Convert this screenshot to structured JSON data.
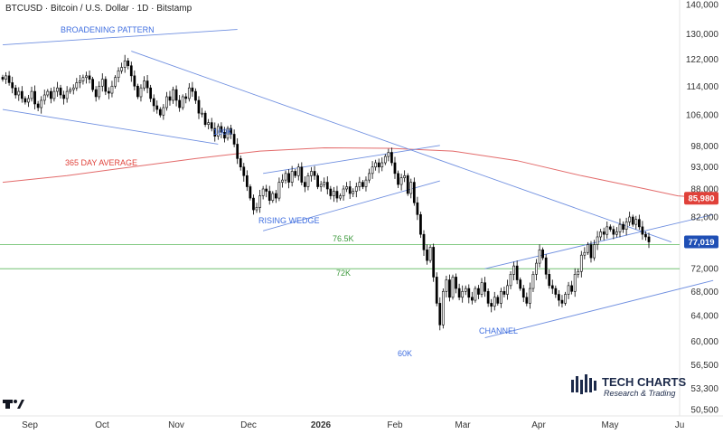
{
  "chart_title": "BTCUSD · Bitcoin / U.S. Dollar · 1D · Bitstamp",
  "platform_logo": "tradingview-logo-icon",
  "brand": {
    "name": "TECH CHARTS",
    "tagline": "Research & Trading",
    "icon": "bar-chart-logo-icon"
  },
  "colors": {
    "up": "#ffffff",
    "down": "#000000",
    "trendline": "#6f8fe0",
    "moving_average": "#e36b6b",
    "support_lines": "#5cb85c",
    "price_badge": "#1f4fb5",
    "ma_badge": "#e0413a"
  },
  "chart_data": {
    "type": "candlestick",
    "y_scale": "log",
    "ylim": [
      49000,
      140000
    ],
    "y_ticks": [
      140000,
      130000,
      122000,
      114000,
      106000,
      98000,
      93000,
      88000,
      82000,
      77000,
      72000,
      68000,
      64000,
      60000,
      56500,
      53300,
      50500
    ],
    "y_tick_labels": [
      "140,000",
      "130,000",
      "122,000",
      "114,000",
      "106,000",
      "98,000",
      "93,000",
      "88,000",
      "82,000",
      "77,000",
      "72,000",
      "68,000",
      "64,000",
      "60,000",
      "56,500",
      "53,300",
      "50,500"
    ],
    "x_ticks": [
      "Sep",
      "Oct",
      "Nov",
      "Dec",
      "2026",
      "Feb",
      "Mar",
      "Apr",
      "May",
      "Ju"
    ],
    "last_price": {
      "label": "77,019",
      "value": 77019
    },
    "ma_value": {
      "label": "85,980",
      "value": 85980
    },
    "annotations": [
      {
        "text": "BROADENING PATTERN",
        "color": "#3f6ee0"
      },
      {
        "text": "100K",
        "color": "#3f6ee0"
      },
      {
        "text": "365 DAY AVERAGE",
        "color": "#e0413a"
      },
      {
        "text": "RISING WEDGE",
        "color": "#3f6ee0"
      },
      {
        "text": "76.5K",
        "color": "#3f9a3f"
      },
      {
        "text": "72K",
        "color": "#3f9a3f"
      },
      {
        "text": "CHANNEL",
        "color": "#3f6ee0"
      },
      {
        "text": "60K",
        "color": "#3f6ee0"
      }
    ],
    "support_levels": [
      76500,
      72000
    ],
    "closes": [
      116000,
      117000,
      115000,
      113500,
      111500,
      112500,
      110500,
      109500,
      110500,
      112500,
      109000,
      108000,
      110000,
      111500,
      112500,
      110500,
      112500,
      113500,
      111500,
      110500,
      112500,
      113000,
      113500,
      115000,
      115500,
      116500,
      117000,
      116000,
      113000,
      111000,
      114000,
      116000,
      112500,
      112000,
      114000,
      116500,
      118500,
      119500,
      121500,
      120000,
      117000,
      114000,
      111000,
      113500,
      115500,
      113500,
      110500,
      108500,
      107500,
      106000,
      108000,
      111000,
      110000,
      113000,
      110000,
      108000,
      111000,
      110500,
      113500,
      112500,
      110000,
      106500,
      106500,
      103500,
      104000,
      102500,
      100500,
      103000,
      101500,
      100000,
      102500,
      101000,
      98500,
      95000,
      93000,
      91000,
      88500,
      86000,
      83500,
      84000,
      86500,
      88000,
      87500,
      85500,
      87000,
      86000,
      89500,
      90000,
      91500,
      89500,
      92000,
      91000,
      93000,
      89500,
      88500,
      91000,
      92000,
      91000,
      88500,
      89000,
      89500,
      88000,
      86500,
      87500,
      86000,
      86500,
      88000,
      88500,
      87000,
      87500,
      88500,
      89500,
      88500,
      90000,
      91500,
      93000,
      94000,
      93000,
      94000,
      95500,
      96500,
      94000,
      91500,
      89000,
      90500,
      91000,
      87000,
      89500,
      85000,
      82500,
      78500,
      75500,
      73500,
      76000,
      70500,
      66000,
      62500,
      68000,
      70000,
      67000,
      70500,
      68500,
      67000,
      68000,
      68500,
      67000,
      66500,
      68500,
      67500,
      69500,
      68000,
      66000,
      65500,
      67000,
      66000,
      68000,
      67500,
      69000,
      71000,
      72500,
      70000,
      68500,
      67000,
      66000,
      68500,
      71000,
      73000,
      75500,
      74000,
      71000,
      69000,
      68500,
      67500,
      66500,
      66000,
      67500,
      69000,
      68000,
      71000,
      71500,
      74500,
      75000,
      76500,
      74000,
      76500,
      78000,
      79000,
      78500,
      80000,
      79500,
      78500,
      79000,
      80500,
      79500,
      81000,
      82000,
      80500,
      81500,
      80000,
      78500,
      78000,
      77019
    ],
    "ma_series": [
      {
        "x": 0,
        "v": 89500
      },
      {
        "x": 20,
        "v": 91000
      },
      {
        "x": 40,
        "v": 93000
      },
      {
        "x": 60,
        "v": 95000
      },
      {
        "x": 80,
        "v": 96800
      },
      {
        "x": 100,
        "v": 97600
      },
      {
        "x": 120,
        "v": 97500
      },
      {
        "x": 140,
        "v": 96800
      },
      {
        "x": 160,
        "v": 94500
      },
      {
        "x": 180,
        "v": 91000
      },
      {
        "x": 200,
        "v": 88000
      },
      {
        "x": 210,
        "v": 86500
      },
      {
        "x": 221,
        "v": 85980
      }
    ]
  }
}
